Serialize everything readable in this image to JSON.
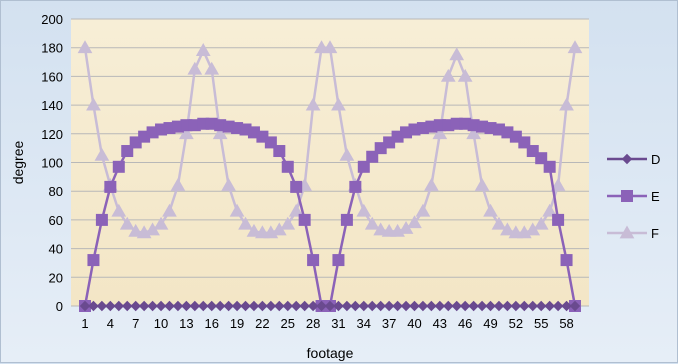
{
  "chart_data": {
    "type": "line",
    "title": "",
    "xlabel": "footage",
    "ylabel": "degree",
    "ylim": [
      0,
      200
    ],
    "yticks": [
      0,
      20,
      40,
      60,
      80,
      100,
      120,
      140,
      160,
      180,
      200
    ],
    "x": [
      1,
      2,
      3,
      4,
      5,
      6,
      7,
      8,
      9,
      10,
      11,
      12,
      13,
      14,
      15,
      16,
      17,
      18,
      19,
      20,
      21,
      22,
      23,
      24,
      25,
      26,
      27,
      28,
      29,
      30,
      31,
      32,
      33,
      34,
      35,
      36,
      37,
      38,
      39,
      40,
      41,
      42,
      43,
      44,
      45,
      46,
      47,
      48,
      49,
      50,
      51,
      52,
      53,
      54,
      55,
      56,
      57,
      58,
      59
    ],
    "xtick_labels": [
      "1",
      "4",
      "7",
      "10",
      "13",
      "16",
      "19",
      "22",
      "25",
      "28",
      "31",
      "34",
      "37",
      "40",
      "43",
      "46",
      "49",
      "52",
      "55",
      "58"
    ],
    "grid": true,
    "legend_position": "right",
    "plot_background": "#f6ecd2",
    "series": [
      {
        "name": "D",
        "color": "#6a4a8f",
        "marker": "diamond",
        "values": [
          0,
          0,
          0,
          0,
          0,
          0,
          0,
          0,
          0,
          0,
          0,
          0,
          0,
          0,
          0,
          0,
          0,
          0,
          0,
          0,
          0,
          0,
          0,
          0,
          0,
          0,
          0,
          0,
          0,
          0,
          0,
          0,
          0,
          0,
          0,
          0,
          0,
          0,
          0,
          0,
          0,
          0,
          0,
          0,
          0,
          0,
          0,
          0,
          0,
          0,
          0,
          0,
          0,
          0,
          0,
          0,
          0,
          0,
          0
        ]
      },
      {
        "name": "E",
        "color": "#8b62b8",
        "marker": "square",
        "values": [
          0,
          32,
          60,
          83,
          97,
          108,
          114,
          118,
          121,
          123,
          124,
          125,
          126,
          126,
          127,
          127,
          126,
          125,
          124,
          123,
          121,
          118,
          114,
          108,
          97,
          83,
          60,
          32,
          0,
          0,
          32,
          60,
          83,
          97,
          104,
          110,
          114,
          118,
          121,
          123,
          124,
          125,
          126,
          126,
          127,
          127,
          126,
          125,
          124,
          123,
          121,
          118,
          114,
          108,
          103,
          97,
          60,
          32,
          0
        ]
      },
      {
        "name": "F",
        "color": "#c8bcd6",
        "marker": "triangle",
        "values": [
          180,
          140,
          105,
          84,
          66,
          57,
          52,
          51,
          53,
          57,
          66,
          84,
          120,
          165,
          178,
          165,
          120,
          84,
          66,
          57,
          52,
          51,
          51,
          53,
          57,
          66,
          84,
          140,
          180,
          180,
          140,
          105,
          84,
          66,
          57,
          53,
          52,
          52,
          54,
          58,
          66,
          84,
          120,
          160,
          175,
          160,
          120,
          84,
          66,
          57,
          53,
          51,
          51,
          53,
          57,
          66,
          84,
          140,
          180
        ]
      }
    ]
  }
}
